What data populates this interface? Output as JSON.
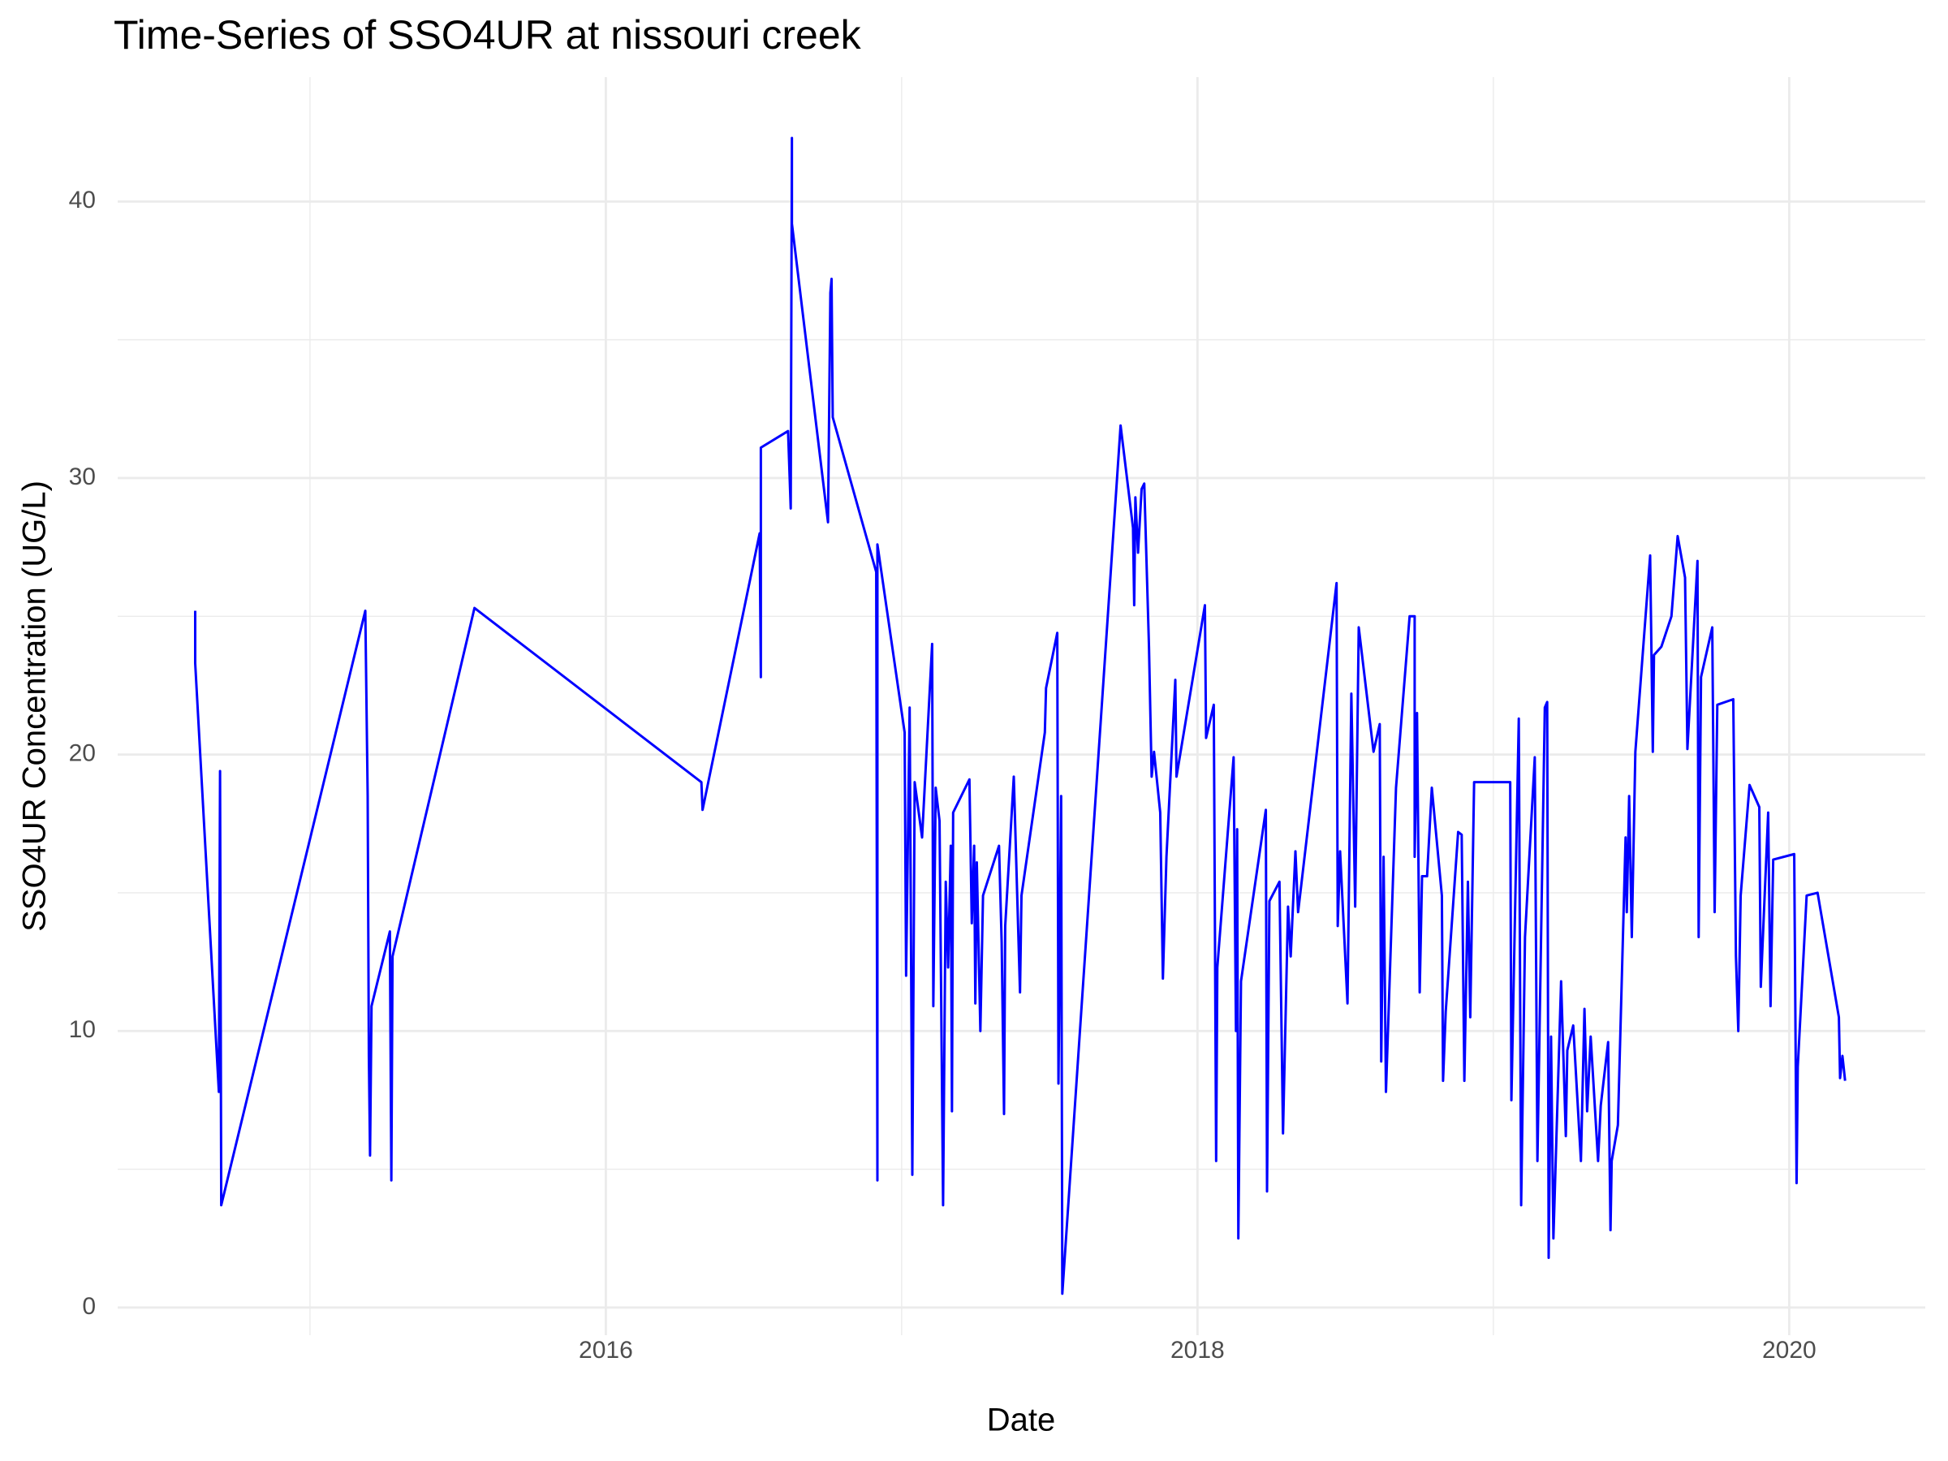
{
  "chart_data": {
    "type": "line",
    "title": "Time-Series of SSO4UR at nissouri creek",
    "x_label": "Date",
    "y_label": "SSO4UR Concentration (UG/L)",
    "color": "#0000ff",
    "xlim": [
      2014.35,
      2020.46
    ],
    "ylim": [
      -1,
      44.5
    ],
    "xticks": [
      2016,
      2018,
      2020
    ],
    "yticks": [
      0,
      10,
      20,
      30,
      40
    ],
    "x_minor_grid": [
      2015,
      2017,
      2019
    ],
    "y_minor_grid": [
      5,
      15,
      25,
      35
    ],
    "grid": true,
    "x": [
      2014.612,
      2014.612,
      2014.692,
      2014.696,
      2014.7,
      2015.187,
      2015.195,
      2015.199,
      2015.203,
      2015.208,
      2015.27,
      2015.275,
      2015.279,
      2015.556,
      2016.323,
      2016.327,
      2016.52,
      2016.524,
      2016.524,
      2016.616,
      2016.625,
      2016.629,
      2016.629,
      2016.751,
      2016.759,
      2016.763,
      2016.767,
      2016.914,
      2016.918,
      2016.918,
      2017.01,
      2017.015,
      2017.027,
      2017.036,
      2017.044,
      2017.069,
      2017.103,
      2017.107,
      2017.115,
      2017.128,
      2017.14,
      2017.149,
      2017.157,
      2017.166,
      2017.17,
      2017.174,
      2017.229,
      2017.237,
      2017.245,
      2017.249,
      2017.254,
      2017.266,
      2017.275,
      2017.329,
      2017.338,
      2017.346,
      2017.35,
      2017.371,
      2017.379,
      2017.4,
      2017.405,
      2017.484,
      2017.488,
      2017.526,
      2017.53,
      2017.539,
      2017.543,
      2017.74,
      2017.782,
      2017.786,
      2017.79,
      2017.799,
      2017.811,
      2017.82,
      2017.836,
      2017.845,
      2017.853,
      2017.874,
      2017.883,
      2017.895,
      2017.925,
      2017.929,
      2018.025,
      2018.029,
      2018.055,
      2018.063,
      2018.067,
      2018.122,
      2018.13,
      2018.134,
      2018.138,
      2018.147,
      2018.231,
      2018.235,
      2018.243,
      2018.277,
      2018.289,
      2018.306,
      2018.315,
      2018.331,
      2018.34,
      2018.47,
      2018.474,
      2018.482,
      2018.507,
      2018.52,
      2018.533,
      2018.545,
      2018.595,
      2018.616,
      2018.621,
      2018.629,
      2018.637,
      2018.671,
      2018.717,
      2018.734,
      2018.734,
      2018.742,
      2018.751,
      2018.759,
      2018.776,
      2018.792,
      2018.826,
      2018.83,
      2018.839,
      2018.881,
      2018.893,
      2018.902,
      2018.914,
      2018.922,
      2018.935,
      2019.057,
      2019.061,
      2019.086,
      2019.094,
      2019.107,
      2019.14,
      2019.149,
      2019.174,
      2019.182,
      2019.187,
      2019.195,
      2019.203,
      2019.229,
      2019.245,
      2019.25,
      2019.27,
      2019.296,
      2019.308,
      2019.317,
      2019.329,
      2019.354,
      2019.363,
      2019.388,
      2019.396,
      2019.4,
      2019.421,
      2019.447,
      2019.451,
      2019.459,
      2019.468,
      2019.48,
      2019.53,
      2019.539,
      2019.543,
      2019.568,
      2019.602,
      2019.623,
      2019.648,
      2019.656,
      2019.69,
      2019.694,
      2019.702,
      2019.74,
      2019.748,
      2019.757,
      2019.811,
      2019.82,
      2019.828,
      2019.836,
      2019.866,
      2019.899,
      2019.904,
      2019.929,
      2019.937,
      2019.946,
      2020.017,
      2020.025,
      2020.029,
      2020.059,
      2020.096,
      2020.168,
      2020.172,
      2020.18,
      2020.189
    ],
    "values": [
      25.2,
      23.3,
      7.8,
      19.4,
      3.7,
      25.2,
      18.5,
      9.1,
      5.5,
      10.9,
      13.6,
      4.6,
      12.7,
      25.3,
      19.0,
      18.0,
      28.0,
      22.8,
      31.1,
      31.7,
      28.9,
      42.3,
      39.2,
      28.4,
      36.7,
      37.2,
      32.2,
      26.6,
      4.6,
      27.6,
      20.8,
      12.0,
      21.7,
      4.8,
      19.0,
      17.0,
      24.0,
      10.9,
      18.8,
      17.6,
      3.7,
      15.4,
      12.3,
      16.7,
      7.1,
      17.9,
      19.1,
      13.9,
      16.7,
      11.0,
      16.1,
      10.0,
      14.9,
      16.7,
      13.2,
      7.0,
      13.8,
      17.7,
      19.2,
      11.4,
      14.9,
      20.8,
      22.4,
      24.4,
      8.1,
      18.5,
      0.5,
      31.9,
      28.2,
      25.4,
      29.3,
      27.3,
      29.6,
      29.8,
      23.9,
      19.2,
      20.1,
      17.9,
      11.9,
      16.3,
      22.7,
      19.2,
      25.4,
      20.6,
      21.8,
      5.3,
      12.3,
      19.9,
      10.0,
      17.3,
      2.5,
      11.8,
      18.0,
      4.2,
      14.7,
      15.4,
      6.3,
      14.5,
      12.7,
      16.5,
      14.3,
      26.2,
      13.8,
      16.5,
      11.0,
      22.2,
      14.5,
      24.6,
      20.1,
      21.1,
      8.9,
      16.3,
      7.8,
      18.8,
      25.0,
      25.0,
      16.3,
      21.5,
      11.4,
      15.6,
      15.6,
      18.8,
      14.9,
      8.2,
      10.7,
      17.2,
      17.1,
      8.2,
      15.4,
      10.5,
      19.0,
      19.0,
      7.5,
      21.3,
      3.7,
      13.4,
      19.9,
      5.3,
      21.7,
      21.9,
      1.8,
      9.8,
      2.5,
      11.8,
      6.2,
      9.3,
      10.2,
      5.3,
      10.8,
      7.1,
      9.8,
      5.3,
      7.3,
      9.6,
      2.8,
      5.3,
      6.6,
      17.0,
      14.3,
      18.5,
      13.4,
      20.1,
      27.2,
      20.1,
      23.6,
      23.9,
      25.0,
      27.9,
      26.4,
      20.2,
      27.0,
      13.4,
      22.8,
      24.6,
      14.3,
      21.8,
      22.0,
      12.7,
      10.0,
      14.9,
      18.9,
      18.1,
      11.6,
      17.9,
      10.9,
      16.2,
      16.4,
      4.5,
      8.7,
      14.9,
      15.0,
      10.5,
      8.3,
      9.1,
      8.2
    ]
  }
}
